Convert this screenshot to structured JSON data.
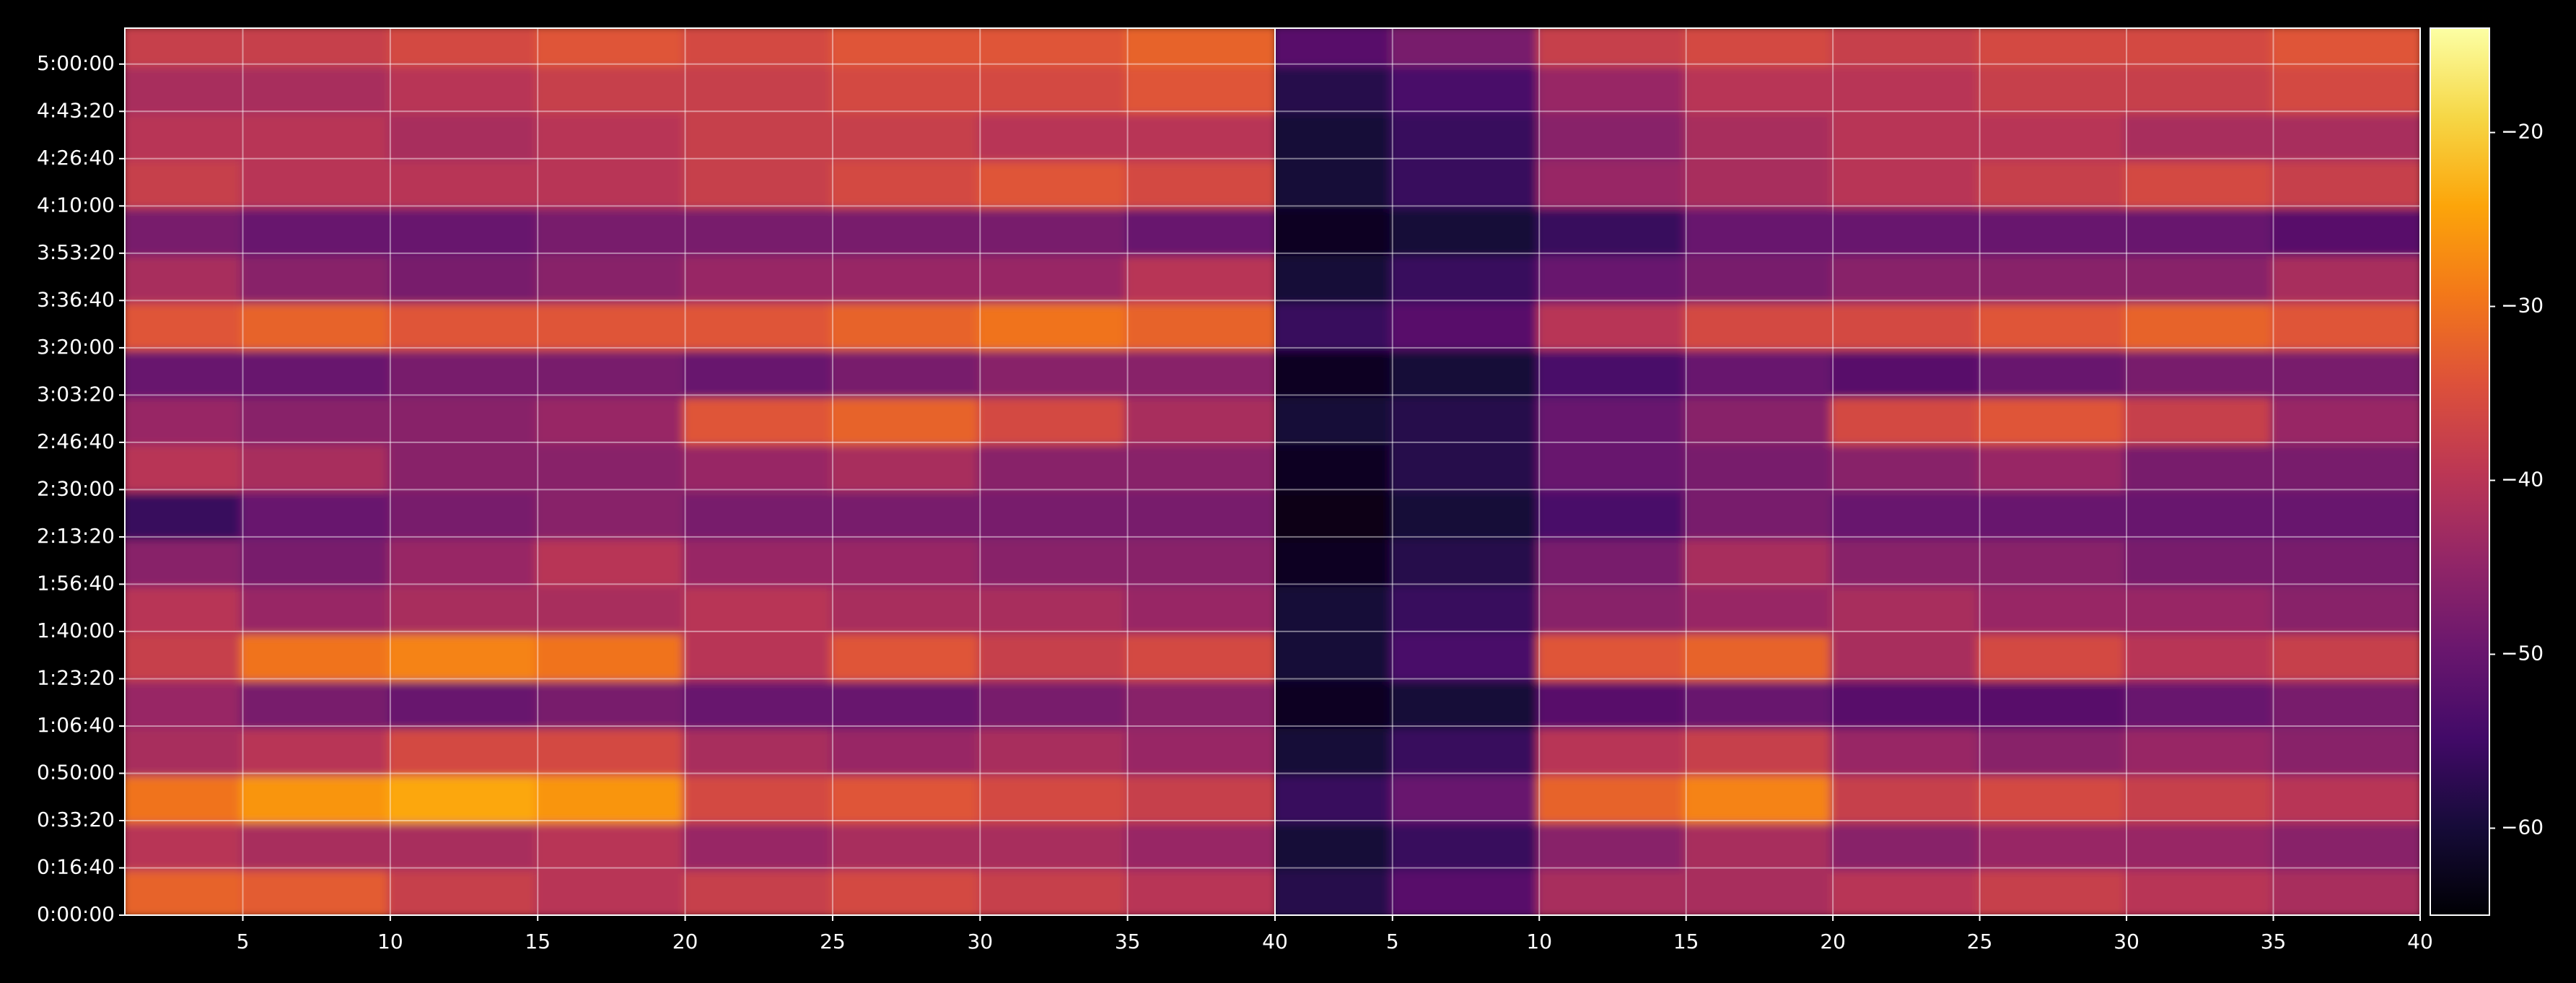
{
  "chart_data": [
    {
      "type": "heatmap",
      "colormap": "inferno",
      "zlim": [
        -65,
        -14
      ],
      "grid": true,
      "xlim": [
        1,
        40
      ],
      "ylim": [
        0,
        18760
      ],
      "xticks": [
        5,
        10,
        15,
        20,
        25,
        30,
        35,
        40
      ],
      "yticks": [
        {
          "value": 0,
          "label": "0:00:00"
        },
        {
          "value": 1000,
          "label": "0:16:40"
        },
        {
          "value": 2000,
          "label": "0:33:20"
        },
        {
          "value": 3000,
          "label": "0:50:00"
        },
        {
          "value": 4000,
          "label": "1:06:40"
        },
        {
          "value": 5000,
          "label": "1:23:20"
        },
        {
          "value": 6000,
          "label": "1:40:00"
        },
        {
          "value": 7000,
          "label": "1:56:40"
        },
        {
          "value": 8000,
          "label": "2:13:20"
        },
        {
          "value": 9000,
          "label": "2:30:00"
        },
        {
          "value": 10000,
          "label": "2:46:40"
        },
        {
          "value": 11000,
          "label": "3:03:20"
        },
        {
          "value": 12000,
          "label": "3:20:00"
        },
        {
          "value": 13000,
          "label": "3:36:40"
        },
        {
          "value": 14000,
          "label": "3:53:20"
        },
        {
          "value": 15000,
          "label": "4:10:00"
        },
        {
          "value": 16000,
          "label": "4:26:40"
        },
        {
          "value": 17000,
          "label": "4:43:20"
        },
        {
          "value": 18000,
          "label": "5:00:00"
        }
      ],
      "xbins": [
        1,
        5,
        10,
        15,
        20,
        25,
        30,
        35,
        40
      ],
      "ybins": [
        0,
        1000,
        2000,
        3000,
        4000,
        5000,
        6000,
        7000,
        8000,
        9000,
        10000,
        11000,
        12000,
        13000,
        14000,
        15000,
        16000,
        17000,
        18000,
        18760
      ],
      "z": [
        [
          -32,
          -33,
          -38,
          -40,
          -38,
          -36,
          -38,
          -40
        ],
        [
          -40,
          -42,
          -42,
          -40,
          -44,
          -42,
          -42,
          -44
        ],
        [
          -30,
          -26,
          -24,
          -26,
          -36,
          -34,
          -36,
          -38
        ],
        [
          -42,
          -40,
          -36,
          -36,
          -42,
          -44,
          -42,
          -44
        ],
        [
          -44,
          -48,
          -50,
          -48,
          -50,
          -50,
          -48,
          -46
        ],
        [
          -38,
          -30,
          -28,
          -30,
          -40,
          -34,
          -38,
          -36
        ],
        [
          -40,
          -44,
          -42,
          -42,
          -40,
          -42,
          -42,
          -44
        ],
        [
          -46,
          -48,
          -44,
          -40,
          -44,
          -44,
          -46,
          -46
        ],
        [
          -56,
          -50,
          -48,
          -46,
          -48,
          -48,
          -48,
          -48
        ],
        [
          -40,
          -42,
          -46,
          -46,
          -44,
          -42,
          -46,
          -46
        ],
        [
          -44,
          -46,
          -46,
          -44,
          -34,
          -32,
          -36,
          -42
        ],
        [
          -50,
          -50,
          -48,
          -48,
          -50,
          -48,
          -46,
          -46
        ],
        [
          -34,
          -32,
          -34,
          -34,
          -34,
          -32,
          -30,
          -32
        ],
        [
          -42,
          -46,
          -48,
          -46,
          -44,
          -44,
          -44,
          -40
        ],
        [
          -48,
          -50,
          -50,
          -48,
          -48,
          -48,
          -48,
          -50
        ],
        [
          -38,
          -40,
          -40,
          -40,
          -38,
          -36,
          -34,
          -36
        ],
        [
          -40,
          -40,
          -42,
          -40,
          -38,
          -38,
          -40,
          -40
        ],
        [
          -42,
          -42,
          -40,
          -38,
          -38,
          -36,
          -36,
          -34
        ],
        [
          -38,
          -38,
          -36,
          -34,
          -36,
          -34,
          -34,
          -32
        ]
      ]
    },
    {
      "type": "heatmap",
      "colormap": "inferno",
      "zlim": [
        -65,
        -14
      ],
      "grid": true,
      "xlim": [
        1,
        40
      ],
      "ylim": [
        0,
        18760
      ],
      "xticks": [
        5,
        10,
        15,
        20,
        25,
        30,
        35,
        40
      ],
      "xbins": [
        1,
        5,
        10,
        15,
        20,
        25,
        30,
        35,
        40
      ],
      "ybins": [
        0,
        1000,
        2000,
        3000,
        4000,
        5000,
        6000,
        7000,
        8000,
        9000,
        10000,
        11000,
        12000,
        13000,
        14000,
        15000,
        16000,
        17000,
        18000,
        18760
      ],
      "z": [
        [
          -58,
          -52,
          -42,
          -42,
          -40,
          -38,
          -40,
          -42
        ],
        [
          -60,
          -56,
          -46,
          -42,
          -46,
          -44,
          -44,
          -46
        ],
        [
          -56,
          -50,
          -32,
          -28,
          -38,
          -36,
          -38,
          -40
        ],
        [
          -60,
          -56,
          -40,
          -38,
          -44,
          -46,
          -44,
          -46
        ],
        [
          -62,
          -60,
          -52,
          -50,
          -52,
          -52,
          -50,
          -48
        ],
        [
          -60,
          -54,
          -34,
          -32,
          -42,
          -36,
          -40,
          -38
        ],
        [
          -60,
          -56,
          -46,
          -44,
          -42,
          -44,
          -44,
          -46
        ],
        [
          -62,
          -58,
          -48,
          -42,
          -46,
          -46,
          -48,
          -48
        ],
        [
          -63,
          -60,
          -54,
          -48,
          -50,
          -50,
          -50,
          -50
        ],
        [
          -62,
          -58,
          -50,
          -48,
          -46,
          -44,
          -48,
          -48
        ],
        [
          -60,
          -58,
          -50,
          -46,
          -36,
          -34,
          -38,
          -44
        ],
        [
          -62,
          -60,
          -54,
          -50,
          -52,
          -50,
          -48,
          -48
        ],
        [
          -56,
          -52,
          -40,
          -36,
          -36,
          -34,
          -32,
          -34
        ],
        [
          -60,
          -56,
          -50,
          -48,
          -46,
          -46,
          -46,
          -42
        ],
        [
          -62,
          -60,
          -56,
          -50,
          -50,
          -50,
          -50,
          -52
        ],
        [
          -60,
          -56,
          -44,
          -42,
          -40,
          -38,
          -36,
          -38
        ],
        [
          -60,
          -56,
          -46,
          -42,
          -40,
          -40,
          -42,
          -42
        ],
        [
          -58,
          -54,
          -44,
          -40,
          -40,
          -38,
          -38,
          -36
        ],
        [
          -52,
          -48,
          -38,
          -36,
          -38,
          -36,
          -36,
          -34
        ]
      ],
      "colorbar": {
        "ticks": [
          {
            "value": -20,
            "label": "−20"
          },
          {
            "value": -30,
            "label": "−30"
          },
          {
            "value": -40,
            "label": "−40"
          },
          {
            "value": -50,
            "label": "−50"
          },
          {
            "value": -60,
            "label": "−60"
          }
        ]
      }
    }
  ]
}
